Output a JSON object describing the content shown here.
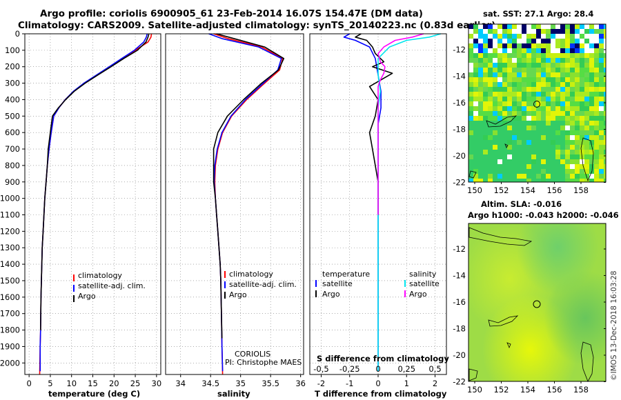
{
  "title": {
    "line1": "Argo profile: coriolis 6900905_61 23-Feb-2014 16.07S 154.47E (DM data)",
    "line2": "Climatology: CARS2009. Satellite-adjusted climatology: synTS_20140223.nc (0.83d earlier)"
  },
  "colors": {
    "climatology": "#ff0000",
    "satellite": "#0000ff",
    "argo": "#000000",
    "sat_salinity": "#00e5ee",
    "argo_salinity": "#ff00ff"
  },
  "chart_data": [
    {
      "type": "line",
      "panel": "temperature",
      "xlabel": "temperature (deg C)",
      "ylabel": "",
      "xlim": [
        -1,
        31
      ],
      "ylim": [
        2070,
        0
      ],
      "xticks": [
        "0",
        "5",
        "10",
        "15",
        "20",
        "25",
        "30"
      ],
      "yticks": [
        "0",
        "100",
        "200",
        "300",
        "400",
        "500",
        "600",
        "700",
        "800",
        "900",
        "1000",
        "1100",
        "1200",
        "1300",
        "1400",
        "1500",
        "1600",
        "1700",
        "1800",
        "1900",
        "2000"
      ],
      "legend": [
        "climatology",
        "satellite-adj. clim.",
        "Argo"
      ],
      "series": [
        {
          "name": "climatology",
          "x": [
            28.8,
            28.7,
            28.0,
            25.0,
            22.0,
            19.0,
            16.0,
            13.0,
            10.5,
            8.5,
            7.0,
            5.8,
            5.2,
            4.7,
            4.3,
            4.0,
            3.7,
            3.5,
            3.3,
            3.1,
            3.0,
            2.9,
            2.8,
            2.7,
            2.6,
            2.5
          ],
          "y": [
            0,
            20,
            50,
            100,
            150,
            200,
            250,
            300,
            350,
            400,
            450,
            500,
            600,
            700,
            800,
            900,
            1000,
            1100,
            1200,
            1300,
            1400,
            1500,
            1600,
            1800,
            1900,
            2070
          ]
        },
        {
          "name": "satellite-adj. clim.",
          "x": [
            27.8,
            27.6,
            27.0,
            24.8,
            21.8,
            18.9,
            15.9,
            12.9,
            10.4,
            8.5,
            7.0,
            5.8,
            5.2,
            4.7,
            4.3,
            4.0,
            3.7,
            3.5,
            3.3,
            3.1,
            3.0,
            2.9,
            2.8,
            2.7,
            2.6,
            2.6
          ],
          "y": [
            0,
            20,
            50,
            100,
            150,
            200,
            250,
            300,
            350,
            400,
            450,
            500,
            600,
            700,
            800,
            900,
            1000,
            1100,
            1200,
            1300,
            1400,
            1500,
            1600,
            1800,
            1900,
            2050
          ]
        },
        {
          "name": "Argo",
          "x": [
            28.2,
            28.0,
            27.5,
            25.5,
            22.3,
            19.3,
            16.2,
            13.2,
            10.6,
            8.6,
            6.9,
            5.5,
            5.0,
            4.5,
            4.3,
            4.0,
            3.7,
            3.5,
            3.3,
            3.1,
            3.0,
            2.9,
            2.8,
            2.7
          ],
          "y": [
            0,
            20,
            50,
            100,
            150,
            200,
            250,
            300,
            350,
            400,
            450,
            500,
            600,
            700,
            800,
            900,
            1000,
            1100,
            1200,
            1300,
            1400,
            1500,
            1600,
            1800
          ]
        }
      ]
    },
    {
      "type": "line",
      "panel": "salinity",
      "xlabel": "salinity",
      "ylabel": "",
      "xlim": [
        33.75,
        36.05
      ],
      "ylim": [
        2070,
        0
      ],
      "xticks": [
        "34",
        "34.5",
        "35",
        "35.5",
        "36"
      ],
      "legend": [
        "climatology",
        "satellite-adj. clim.",
        "Argo"
      ],
      "annotations": [
        "CORIOLIS",
        "PI: Christophe MAES"
      ],
      "series": [
        {
          "name": "climatology",
          "x": [
            34.55,
            34.8,
            35.35,
            35.7,
            35.65,
            35.4,
            35.1,
            34.85,
            34.7,
            34.62,
            34.58,
            34.57,
            34.58,
            34.6,
            34.62,
            34.64,
            34.66,
            34.67,
            34.68,
            34.69,
            34.7
          ],
          "y": [
            0,
            30,
            80,
            150,
            220,
            300,
            400,
            500,
            600,
            700,
            800,
            900,
            1000,
            1100,
            1200,
            1300,
            1400,
            1500,
            1700,
            1900,
            2070
          ]
        },
        {
          "name": "satellite-adj. clim.",
          "x": [
            34.47,
            34.7,
            35.3,
            35.68,
            35.62,
            35.38,
            35.08,
            34.84,
            34.69,
            34.61,
            34.57,
            34.56,
            34.58,
            34.6,
            34.62,
            34.64,
            34.66,
            34.67,
            34.68,
            34.69,
            34.7
          ],
          "y": [
            0,
            30,
            80,
            150,
            220,
            300,
            400,
            500,
            600,
            700,
            800,
            900,
            1000,
            1100,
            1200,
            1300,
            1400,
            1500,
            1700,
            1900,
            2050
          ]
        },
        {
          "name": "Argo",
          "x": [
            34.6,
            34.9,
            35.4,
            35.72,
            35.63,
            35.35,
            35.05,
            34.78,
            34.62,
            34.55,
            34.55,
            34.55,
            34.58,
            34.6,
            34.62,
            34.64,
            34.66,
            34.67,
            34.68,
            34.69
          ],
          "y": [
            0,
            30,
            80,
            150,
            220,
            300,
            400,
            500,
            600,
            700,
            800,
            900,
            1000,
            1100,
            1200,
            1300,
            1400,
            1500,
            1700,
            1850
          ]
        }
      ]
    },
    {
      "type": "line",
      "panel": "difference",
      "xlabel": "T difference from climatology",
      "ylabel": "",
      "xlim": [
        -2.4,
        2.4
      ],
      "ylim": [
        2070,
        0
      ],
      "xticks": [
        "-2",
        "-1",
        "0",
        "1",
        "2"
      ],
      "s_axis_label": "S difference from climatology",
      "s_xticks": [
        "-0.5",
        "-0.25",
        "0",
        "0.25",
        "0.5"
      ],
      "legend_left_title": "temperature",
      "legend_right_title": "salinity",
      "legend_left": [
        "satellite",
        "Argo"
      ],
      "legend_right": [
        "satellite",
        "Argo"
      ],
      "series": [
        {
          "name": "T satellite",
          "x": [
            -1.0,
            -1.2,
            -0.8,
            -0.3,
            -0.1,
            0,
            0.1,
            0.1,
            0,
            0,
            0,
            0,
            0,
            0,
            0,
            0,
            0
          ],
          "y": [
            0,
            20,
            40,
            80,
            150,
            250,
            350,
            450,
            550,
            650,
            750,
            900,
            1100,
            1300,
            1600,
            1900,
            2050
          ]
        },
        {
          "name": "T Argo",
          "x": [
            -0.6,
            -0.8,
            -0.4,
            -0.2,
            -0.1,
            0.2,
            -0.2,
            0.5,
            0.1,
            -0.3,
            0,
            -0.1,
            -0.3,
            -0.2,
            -0.1,
            0,
            0,
            0
          ],
          "y": [
            0,
            20,
            40,
            80,
            120,
            170,
            200,
            240,
            280,
            320,
            400,
            500,
            600,
            700,
            800,
            900,
            1000,
            1100
          ]
        },
        {
          "name": "S satellite",
          "x": [
            0.55,
            0.45,
            0.25,
            0.1,
            0,
            0,
            0.02,
            0,
            0,
            0,
            0,
            0,
            0,
            0,
            0,
            0,
            0
          ],
          "y": [
            0,
            20,
            40,
            80,
            150,
            250,
            350,
            450,
            550,
            650,
            750,
            900,
            1100,
            1300,
            1600,
            1900,
            2050
          ]
        },
        {
          "name": "S Argo",
          "x": [
            0.4,
            0.3,
            0.15,
            0.05,
            0,
            0.02,
            0.06,
            0.05,
            0.02,
            0,
            0,
            0,
            0,
            0,
            0,
            0,
            0,
            0
          ],
          "y": [
            0,
            20,
            40,
            80,
            120,
            170,
            200,
            240,
            280,
            320,
            400,
            500,
            600,
            700,
            800,
            900,
            1000,
            1100
          ]
        }
      ]
    },
    {
      "type": "heatmap",
      "panel": "sst-map",
      "title": "sat. SST: 27.1 Argo: 28.4",
      "xticks": [
        "150",
        "152",
        "154",
        "156",
        "158"
      ],
      "yticks": [
        "-12",
        "-14",
        "-16",
        "-18",
        "-20",
        "-22"
      ],
      "profile_marker": [
        154.47,
        -16.07
      ]
    },
    {
      "type": "heatmap",
      "panel": "sla-map",
      "title_line1": "Altim. SLA: -0.016",
      "title_line2": "Argo h1000: -0.043 h2000: -0.046",
      "xticks": [
        "150",
        "152",
        "154",
        "156",
        "158"
      ],
      "yticks": [
        "-12",
        "-14",
        "-16",
        "-18",
        "-20",
        "-22"
      ],
      "profile_marker": [
        154.47,
        -16.07
      ]
    }
  ],
  "watermark": "©IMOS 13-Dec-2018 16:03:28"
}
